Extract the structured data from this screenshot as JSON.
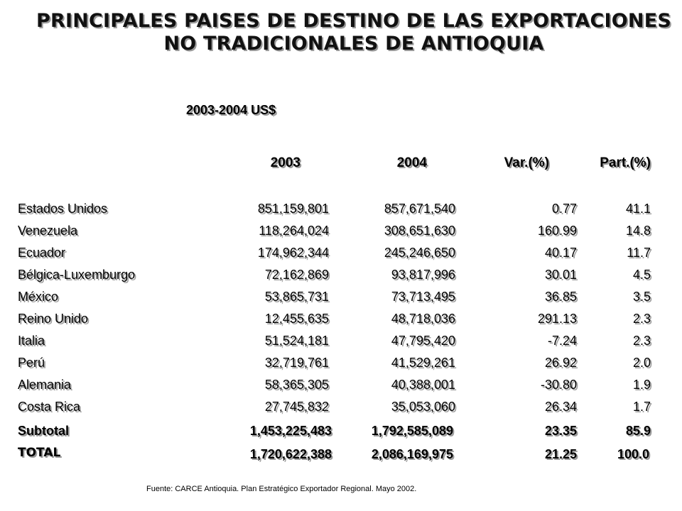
{
  "title": {
    "line1": "PRINCIPALES PAISES DE DESTINO DE LAS EXPORTACIONES",
    "line2": "NO TRADICIONALES DE ANTIOQUIA"
  },
  "subtitle": "2003-2004 US$",
  "headers": {
    "y2003": "2003",
    "y2004": "2004",
    "var": "Var.(%)",
    "part": "Part.(%)"
  },
  "rows": [
    {
      "country": "Estados Unidos",
      "y2003": "851,159,801",
      "y2004": "857,671,540",
      "var": "0.77",
      "part": "41.1"
    },
    {
      "country": "Venezuela",
      "y2003": "118,264,024",
      "y2004": "308,651,630",
      "var": "160.99",
      "part": "14.8"
    },
    {
      "country": "Ecuador",
      "y2003": "174,962,344",
      "y2004": "245,246,650",
      "var": "40.17",
      "part": "11.7"
    },
    {
      "country": "Bélgica-Luxemburgo",
      "y2003": "72,162,869",
      "y2004": "93,817,996",
      "var": "30.01",
      "part": "4.5"
    },
    {
      "country": "México",
      "y2003": "53,865,731",
      "y2004": "73,713,495",
      "var": "36.85",
      "part": "3.5"
    },
    {
      "country": "Reino Unido",
      "y2003": "12,455,635",
      "y2004": "48,718,036",
      "var": "291.13",
      "part": "2.3"
    },
    {
      "country": "Italia",
      "y2003": "51,524,181",
      "y2004": "47,795,420",
      "var": "-7.24",
      "part": "2.3"
    },
    {
      "country": "Perú",
      "y2003": "32,719,761",
      "y2004": "41,529,261",
      "var": "26.92",
      "part": "2.0"
    },
    {
      "country": "Alemania",
      "y2003": "58,365,305",
      "y2004": "40,388,001",
      "var": "-30.80",
      "part": "1.9"
    },
    {
      "country": "Costa Rica",
      "y2003": "27,745,832",
      "y2004": "35,053,060",
      "var": "26.34",
      "part": "1.7"
    }
  ],
  "subtotal": {
    "label": "Subtotal",
    "y2003": "1,453,225,483",
    "y2004": "1,792,585,089",
    "var": "23.35",
    "part": "85.9"
  },
  "total": {
    "label": "TOTAL",
    "y2003": "1,720,622,388",
    "y2004": "2,086,169,975",
    "var": "21.25",
    "part": "100.0"
  },
  "footer": "Fuente: CARCE Antioquia. Plan Estratégico Exportador Regional. Mayo 2002."
}
